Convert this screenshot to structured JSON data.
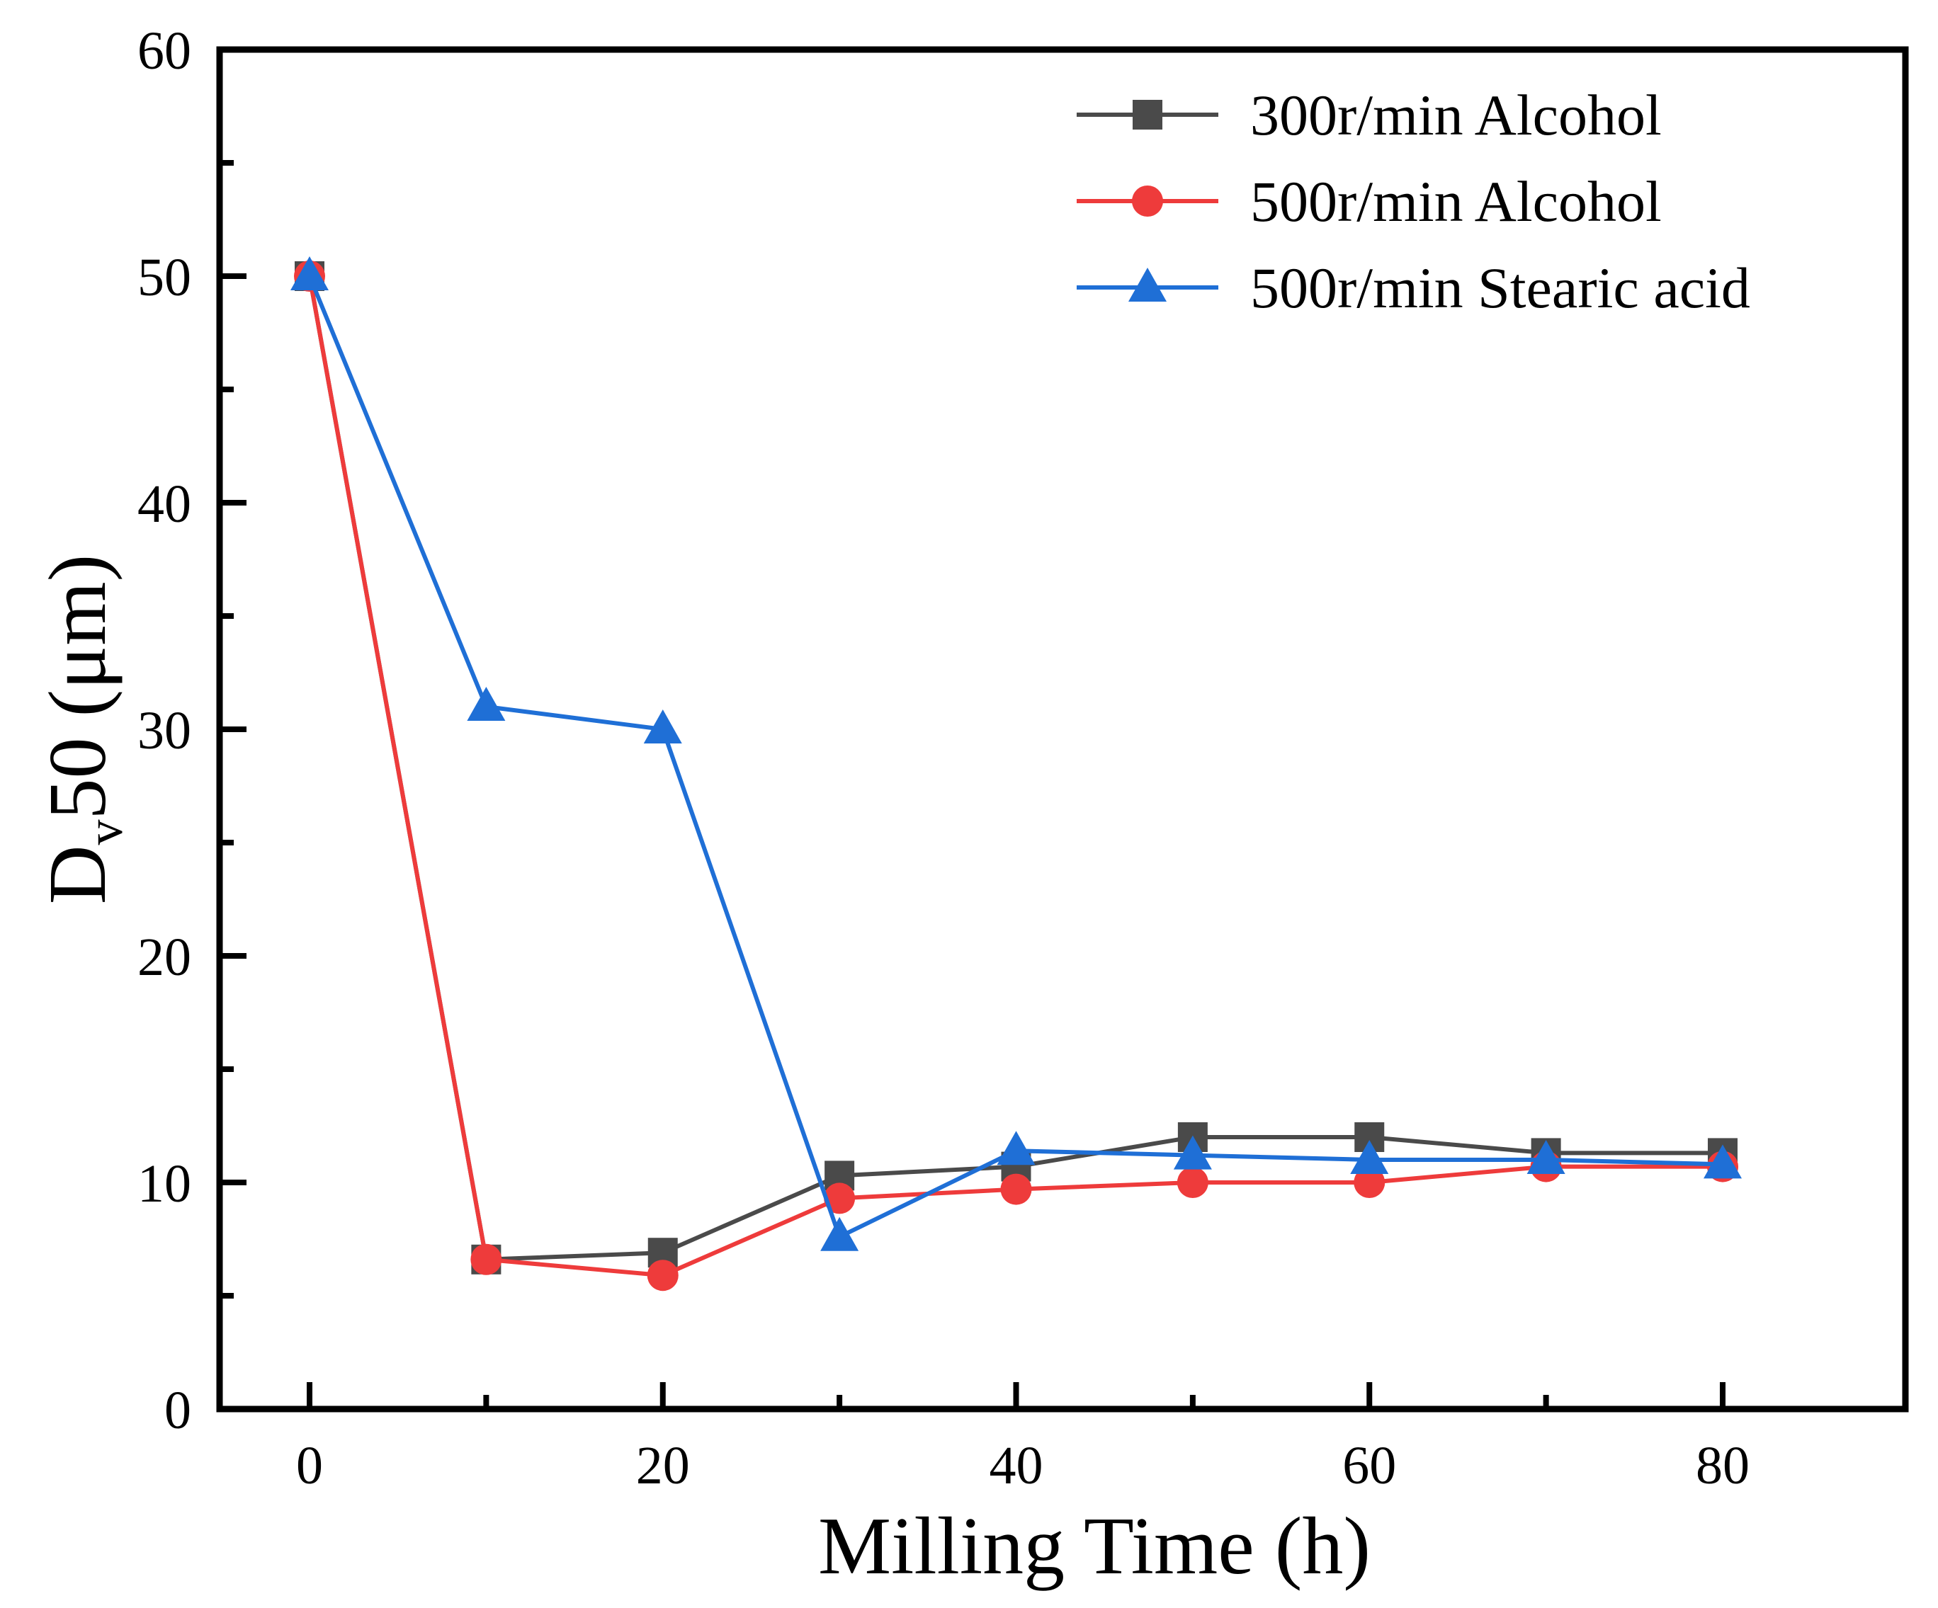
{
  "chart_data": {
    "type": "line",
    "title": "",
    "xlabel": "Milling Time (h)",
    "ylabel_main": "D",
    "ylabel_sub": "v",
    "ylabel_rest": "50 (μm)",
    "xlim": [
      -5,
      90
    ],
    "ylim": [
      0,
      60
    ],
    "xticks": [
      0,
      20,
      40,
      60,
      80
    ],
    "yticks": [
      0,
      10,
      20,
      30,
      40,
      50,
      60
    ],
    "legend_position": "top-right",
    "series": [
      {
        "name": "300r/min Alcohol",
        "color": "#4a4a4a",
        "marker": "square",
        "x": [
          0,
          10,
          20,
          30,
          40,
          50,
          60,
          70,
          80
        ],
        "y": [
          50,
          6.6,
          6.9,
          10.3,
          10.7,
          12.0,
          12.0,
          11.3,
          11.3
        ]
      },
      {
        "name": "500r/min Alcohol",
        "color": "#ee3b3b",
        "marker": "circle",
        "x": [
          0,
          10,
          20,
          30,
          40,
          50,
          60,
          70,
          80
        ],
        "y": [
          50,
          6.6,
          5.9,
          9.3,
          9.7,
          10.0,
          10.0,
          10.7,
          10.7
        ]
      },
      {
        "name": "500r/min Stearic acid",
        "color": "#1f6fd6",
        "marker": "triangle",
        "x": [
          0,
          10,
          20,
          30,
          40,
          50,
          60,
          70,
          80
        ],
        "y": [
          50,
          31,
          30,
          7.6,
          11.4,
          11.2,
          11.0,
          11.0,
          10.8
        ]
      }
    ]
  }
}
